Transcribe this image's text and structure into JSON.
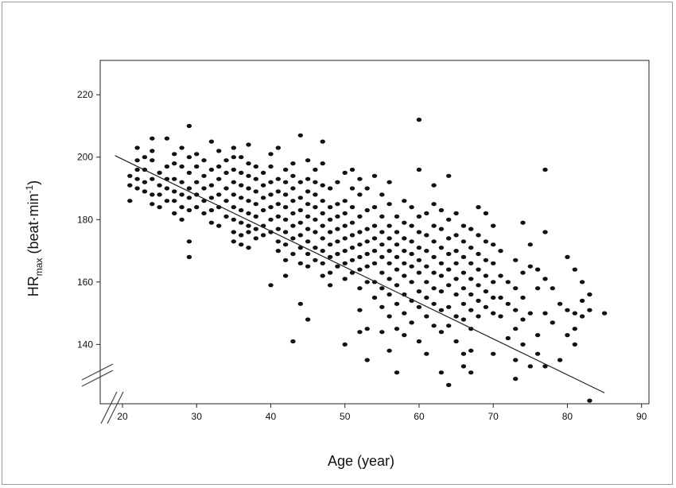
{
  "chart_data": {
    "type": "scatter",
    "xlabel": "Age (year)",
    "ylabel": {
      "main": "HR",
      "subscript": "max",
      "unit": " (beat·min",
      "superscript": "-1",
      "close": ")"
    },
    "x_ticks": [
      20,
      30,
      40,
      50,
      60,
      70,
      80,
      90
    ],
    "y_ticks": [
      140,
      160,
      180,
      200,
      220
    ],
    "xlim": [
      17,
      91
    ],
    "ylim": [
      121,
      231
    ],
    "axis_breaks": [
      "x",
      "y"
    ],
    "grid": false,
    "regression_line": {
      "x1": 19,
      "y1": 200.5,
      "x2": 85,
      "y2": 124.5
    },
    "points": [
      [
        21,
        186
      ],
      [
        21,
        191
      ],
      [
        21,
        194
      ],
      [
        22,
        190
      ],
      [
        22,
        193
      ],
      [
        22,
        196
      ],
      [
        22,
        199
      ],
      [
        22,
        203
      ],
      [
        23,
        189
      ],
      [
        23,
        192
      ],
      [
        23,
        196
      ],
      [
        23,
        200
      ],
      [
        24,
        185
      ],
      [
        24,
        188
      ],
      [
        24,
        193
      ],
      [
        24,
        199
      ],
      [
        24,
        202
      ],
      [
        24,
        206
      ],
      [
        25,
        184
      ],
      [
        25,
        188
      ],
      [
        25,
        191
      ],
      [
        25,
        195
      ],
      [
        26,
        186
      ],
      [
        26,
        190
      ],
      [
        26,
        193
      ],
      [
        26,
        197
      ],
      [
        26,
        206
      ],
      [
        27,
        182
      ],
      [
        27,
        186
      ],
      [
        27,
        189
      ],
      [
        27,
        193
      ],
      [
        27,
        198
      ],
      [
        27,
        201
      ],
      [
        28,
        180
      ],
      [
        28,
        184
      ],
      [
        28,
        188
      ],
      [
        28,
        192
      ],
      [
        28,
        197
      ],
      [
        28,
        203
      ],
      [
        29,
        168
      ],
      [
        29,
        173
      ],
      [
        29,
        183
      ],
      [
        29,
        187
      ],
      [
        29,
        190
      ],
      [
        29,
        195
      ],
      [
        29,
        200
      ],
      [
        29,
        210
      ],
      [
        30,
        184
      ],
      [
        30,
        188
      ],
      [
        30,
        192
      ],
      [
        30,
        197
      ],
      [
        30,
        201
      ],
      [
        31,
        182
      ],
      [
        31,
        186
      ],
      [
        31,
        190
      ],
      [
        31,
        194
      ],
      [
        31,
        199
      ],
      [
        32,
        179
      ],
      [
        32,
        183
      ],
      [
        32,
        187
      ],
      [
        32,
        191
      ],
      [
        32,
        196
      ],
      [
        32,
        205
      ],
      [
        33,
        178
      ],
      [
        33,
        184
      ],
      [
        33,
        188
      ],
      [
        33,
        193
      ],
      [
        33,
        197
      ],
      [
        33,
        202
      ],
      [
        34,
        181
      ],
      [
        34,
        186
      ],
      [
        34,
        190
      ],
      [
        34,
        195
      ],
      [
        34,
        199
      ],
      [
        35,
        173
      ],
      [
        35,
        176
      ],
      [
        35,
        180
      ],
      [
        35,
        184
      ],
      [
        35,
        188
      ],
      [
        35,
        192
      ],
      [
        35,
        196
      ],
      [
        35,
        200
      ],
      [
        35,
        203
      ],
      [
        36,
        172
      ],
      [
        36,
        175
      ],
      [
        36,
        179
      ],
      [
        36,
        183
      ],
      [
        36,
        187
      ],
      [
        36,
        191
      ],
      [
        36,
        195
      ],
      [
        36,
        200
      ],
      [
        37,
        171
      ],
      [
        37,
        176
      ],
      [
        37,
        178
      ],
      [
        37,
        182
      ],
      [
        37,
        186
      ],
      [
        37,
        190
      ],
      [
        37,
        194
      ],
      [
        37,
        198
      ],
      [
        37,
        204
      ],
      [
        38,
        174
      ],
      [
        38,
        177
      ],
      [
        38,
        181
      ],
      [
        38,
        185
      ],
      [
        38,
        189
      ],
      [
        38,
        193
      ],
      [
        38,
        197
      ],
      [
        39,
        175
      ],
      [
        39,
        178
      ],
      [
        39,
        183
      ],
      [
        39,
        187
      ],
      [
        39,
        191
      ],
      [
        39,
        195
      ],
      [
        40,
        159
      ],
      [
        40,
        176
      ],
      [
        40,
        180
      ],
      [
        40,
        184
      ],
      [
        40,
        188
      ],
      [
        40,
        192
      ],
      [
        40,
        197
      ],
      [
        40,
        201
      ],
      [
        41,
        170
      ],
      [
        41,
        173
      ],
      [
        41,
        177
      ],
      [
        41,
        181
      ],
      [
        41,
        185
      ],
      [
        41,
        189
      ],
      [
        41,
        193
      ],
      [
        41,
        203
      ],
      [
        42,
        162
      ],
      [
        42,
        167
      ],
      [
        42,
        172
      ],
      [
        42,
        176
      ],
      [
        42,
        180
      ],
      [
        42,
        184
      ],
      [
        42,
        188
      ],
      [
        42,
        192
      ],
      [
        42,
        196
      ],
      [
        43,
        141
      ],
      [
        43,
        169
      ],
      [
        43,
        174
      ],
      [
        43,
        178
      ],
      [
        43,
        182
      ],
      [
        43,
        186
      ],
      [
        43,
        190
      ],
      [
        43,
        194
      ],
      [
        43,
        198
      ],
      [
        44,
        153
      ],
      [
        44,
        166
      ],
      [
        44,
        171
      ],
      [
        44,
        175
      ],
      [
        44,
        179
      ],
      [
        44,
        183
      ],
      [
        44,
        187
      ],
      [
        44,
        192
      ],
      [
        44,
        207
      ],
      [
        45,
        148
      ],
      [
        45,
        165
      ],
      [
        45,
        169
      ],
      [
        45,
        173
      ],
      [
        45,
        177
      ],
      [
        45,
        181
      ],
      [
        45,
        185
      ],
      [
        45,
        189
      ],
      [
        45,
        193
      ],
      [
        45,
        199
      ],
      [
        46,
        167
      ],
      [
        46,
        171
      ],
      [
        46,
        176
      ],
      [
        46,
        180
      ],
      [
        46,
        184
      ],
      [
        46,
        188
      ],
      [
        46,
        192
      ],
      [
        46,
        196
      ],
      [
        47,
        162
      ],
      [
        47,
        166
      ],
      [
        47,
        170
      ],
      [
        47,
        174
      ],
      [
        47,
        178
      ],
      [
        47,
        182
      ],
      [
        47,
        186
      ],
      [
        47,
        191
      ],
      [
        47,
        198
      ],
      [
        47,
        205
      ],
      [
        48,
        159
      ],
      [
        48,
        163
      ],
      [
        48,
        168
      ],
      [
        48,
        172
      ],
      [
        48,
        176
      ],
      [
        48,
        180
      ],
      [
        48,
        184
      ],
      [
        48,
        190
      ],
      [
        49,
        165
      ],
      [
        49,
        169
      ],
      [
        49,
        173
      ],
      [
        49,
        177
      ],
      [
        49,
        181
      ],
      [
        49,
        185
      ],
      [
        49,
        192
      ],
      [
        50,
        140
      ],
      [
        50,
        161
      ],
      [
        50,
        166
      ],
      [
        50,
        170
      ],
      [
        50,
        174
      ],
      [
        50,
        178
      ],
      [
        50,
        182
      ],
      [
        50,
        186
      ],
      [
        50,
        195
      ],
      [
        51,
        163
      ],
      [
        51,
        167
      ],
      [
        51,
        171
      ],
      [
        51,
        175
      ],
      [
        51,
        179
      ],
      [
        51,
        184
      ],
      [
        51,
        190
      ],
      [
        51,
        196
      ],
      [
        52,
        144
      ],
      [
        52,
        151
      ],
      [
        52,
        158
      ],
      [
        52,
        164
      ],
      [
        52,
        168
      ],
      [
        52,
        172
      ],
      [
        52,
        176
      ],
      [
        52,
        181
      ],
      [
        52,
        188
      ],
      [
        52,
        193
      ],
      [
        53,
        135
      ],
      [
        53,
        145
      ],
      [
        53,
        160
      ],
      [
        53,
        165
      ],
      [
        53,
        169
      ],
      [
        53,
        173
      ],
      [
        53,
        177
      ],
      [
        53,
        183
      ],
      [
        53,
        190
      ],
      [
        54,
        155
      ],
      [
        54,
        160
      ],
      [
        54,
        166
      ],
      [
        54,
        170
      ],
      [
        54,
        174
      ],
      [
        54,
        178
      ],
      [
        54,
        184
      ],
      [
        54,
        194
      ],
      [
        55,
        144
      ],
      [
        55,
        152
      ],
      [
        55,
        158
      ],
      [
        55,
        163
      ],
      [
        55,
        168
      ],
      [
        55,
        172
      ],
      [
        55,
        176
      ],
      [
        55,
        181
      ],
      [
        55,
        188
      ],
      [
        56,
        138
      ],
      [
        56,
        149
      ],
      [
        56,
        156
      ],
      [
        56,
        161
      ],
      [
        56,
        166
      ],
      [
        56,
        170
      ],
      [
        56,
        174
      ],
      [
        56,
        178
      ],
      [
        56,
        185
      ],
      [
        56,
        192
      ],
      [
        57,
        131
      ],
      [
        57,
        145
      ],
      [
        57,
        153
      ],
      [
        57,
        159
      ],
      [
        57,
        164
      ],
      [
        57,
        168
      ],
      [
        57,
        172
      ],
      [
        57,
        176
      ],
      [
        57,
        181
      ],
      [
        58,
        143
      ],
      [
        58,
        150
      ],
      [
        58,
        156
      ],
      [
        58,
        162
      ],
      [
        58,
        166
      ],
      [
        58,
        170
      ],
      [
        58,
        174
      ],
      [
        58,
        179
      ],
      [
        58,
        186
      ],
      [
        59,
        147
      ],
      [
        59,
        154
      ],
      [
        59,
        160
      ],
      [
        59,
        165
      ],
      [
        59,
        169
      ],
      [
        59,
        173
      ],
      [
        59,
        178
      ],
      [
        59,
        184
      ],
      [
        60,
        141
      ],
      [
        60,
        152
      ],
      [
        60,
        157
      ],
      [
        60,
        163
      ],
      [
        60,
        167
      ],
      [
        60,
        171
      ],
      [
        60,
        176
      ],
      [
        60,
        181
      ],
      [
        60,
        196
      ],
      [
        60,
        212
      ],
      [
        61,
        137
      ],
      [
        61,
        149
      ],
      [
        61,
        155
      ],
      [
        61,
        160
      ],
      [
        61,
        165
      ],
      [
        61,
        170
      ],
      [
        61,
        175
      ],
      [
        61,
        182
      ],
      [
        62,
        146
      ],
      [
        62,
        153
      ],
      [
        62,
        158
      ],
      [
        62,
        163
      ],
      [
        62,
        168
      ],
      [
        62,
        173
      ],
      [
        62,
        178
      ],
      [
        62,
        185
      ],
      [
        62,
        191
      ],
      [
        63,
        131
      ],
      [
        63,
        144
      ],
      [
        63,
        151
      ],
      [
        63,
        157
      ],
      [
        63,
        162
      ],
      [
        63,
        166
      ],
      [
        63,
        171
      ],
      [
        63,
        177
      ],
      [
        63,
        183
      ],
      [
        64,
        127
      ],
      [
        64,
        146
      ],
      [
        64,
        152
      ],
      [
        64,
        159
      ],
      [
        64,
        164
      ],
      [
        64,
        169
      ],
      [
        64,
        174
      ],
      [
        64,
        180
      ],
      [
        64,
        194
      ],
      [
        65,
        141
      ],
      [
        65,
        149
      ],
      [
        65,
        156
      ],
      [
        65,
        161
      ],
      [
        65,
        166
      ],
      [
        65,
        170
      ],
      [
        65,
        175
      ],
      [
        65,
        182
      ],
      [
        66,
        133
      ],
      [
        66,
        137
      ],
      [
        66,
        148
      ],
      [
        66,
        153
      ],
      [
        66,
        158
      ],
      [
        66,
        163
      ],
      [
        66,
        168
      ],
      [
        66,
        173
      ],
      [
        66,
        178
      ],
      [
        67,
        131
      ],
      [
        67,
        138
      ],
      [
        67,
        145
      ],
      [
        67,
        151
      ],
      [
        67,
        156
      ],
      [
        67,
        161
      ],
      [
        67,
        166
      ],
      [
        67,
        171
      ],
      [
        67,
        177
      ],
      [
        68,
        149
      ],
      [
        68,
        154
      ],
      [
        68,
        159
      ],
      [
        68,
        164
      ],
      [
        68,
        169
      ],
      [
        68,
        175
      ],
      [
        68,
        184
      ],
      [
        69,
        152
      ],
      [
        69,
        157
      ],
      [
        69,
        162
      ],
      [
        69,
        167
      ],
      [
        69,
        173
      ],
      [
        69,
        182
      ],
      [
        70,
        137
      ],
      [
        70,
        150
      ],
      [
        70,
        155
      ],
      [
        70,
        160
      ],
      [
        70,
        166
      ],
      [
        70,
        172
      ],
      [
        70,
        178
      ],
      [
        71,
        149
      ],
      [
        71,
        155
      ],
      [
        71,
        162
      ],
      [
        71,
        170
      ],
      [
        72,
        142
      ],
      [
        72,
        153
      ],
      [
        72,
        160
      ],
      [
        73,
        129
      ],
      [
        73,
        135
      ],
      [
        73,
        145
      ],
      [
        73,
        151
      ],
      [
        73,
        158
      ],
      [
        73,
        167
      ],
      [
        74,
        140
      ],
      [
        74,
        148
      ],
      [
        74,
        155
      ],
      [
        74,
        163
      ],
      [
        74,
        179
      ],
      [
        75,
        133
      ],
      [
        75,
        150
      ],
      [
        75,
        165
      ],
      [
        75,
        172
      ],
      [
        76,
        137
      ],
      [
        76,
        143
      ],
      [
        76,
        158
      ],
      [
        76,
        164
      ],
      [
        77,
        133
      ],
      [
        77,
        150
      ],
      [
        77,
        161
      ],
      [
        77,
        176
      ],
      [
        77,
        196
      ],
      [
        78,
        147
      ],
      [
        78,
        158
      ],
      [
        79,
        135
      ],
      [
        79,
        153
      ],
      [
        80,
        143
      ],
      [
        80,
        151
      ],
      [
        80,
        168
      ],
      [
        81,
        140
      ],
      [
        81,
        145
      ],
      [
        81,
        150
      ],
      [
        81,
        164
      ],
      [
        82,
        149
      ],
      [
        82,
        154
      ],
      [
        82,
        160
      ],
      [
        83,
        122
      ],
      [
        83,
        151
      ],
      [
        83,
        156
      ],
      [
        85,
        150
      ]
    ]
  }
}
